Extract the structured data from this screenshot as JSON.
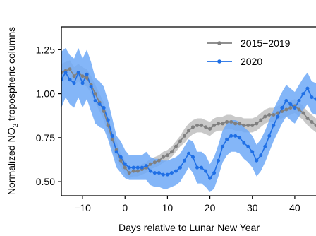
{
  "chart_data": {
    "type": "line",
    "xlabel": "Days relative to Lunar New Year",
    "ylabel_text": "Normalized NO",
    "ylabel_subscript": "2",
    "ylabel_suffix": " tropospheric columns",
    "xlim": [
      -15,
      45
    ],
    "ylim": [
      0.42,
      1.38
    ],
    "xticks": [
      -10,
      0,
      10,
      20,
      30,
      40
    ],
    "xtick_labels": [
      "−10",
      "0",
      "10",
      "20",
      "30",
      "40"
    ],
    "yticks": [
      0.5,
      0.75,
      1.0,
      1.25
    ],
    "ytick_labels": [
      "0.50",
      "0.75",
      "1.00",
      "1.25"
    ],
    "grid": false,
    "legend_position": "top-right",
    "colors": {
      "s2015": "#808080",
      "s2015_band": "#c0c0c0",
      "s2020": "#1f6fe5",
      "s2020_band": "#6fa9f7"
    },
    "series": [
      {
        "name": "2015−2019",
        "x": [
          -15,
          -14,
          -13,
          -12,
          -11,
          -10,
          -9,
          -8,
          -7,
          -6,
          -5,
          -4,
          -3,
          -2,
          -1,
          0,
          1,
          2,
          3,
          4,
          5,
          6,
          7,
          8,
          9,
          10,
          11,
          12,
          13,
          14,
          15,
          16,
          17,
          18,
          19,
          20,
          21,
          22,
          23,
          24,
          25,
          26,
          27,
          28,
          29,
          30,
          31,
          32,
          33,
          34,
          35,
          36,
          37,
          38,
          39,
          40,
          41,
          42,
          43,
          44,
          45
        ],
        "y": [
          1.12,
          1.13,
          1.14,
          1.1,
          1.12,
          1.1,
          1.09,
          1.05,
          1.0,
          0.95,
          0.9,
          0.82,
          0.74,
          0.68,
          0.62,
          0.58,
          0.55,
          0.56,
          0.56,
          0.57,
          0.58,
          0.6,
          0.61,
          0.62,
          0.64,
          0.65,
          0.67,
          0.7,
          0.73,
          0.76,
          0.79,
          0.81,
          0.82,
          0.82,
          0.81,
          0.8,
          0.82,
          0.83,
          0.83,
          0.84,
          0.84,
          0.83,
          0.83,
          0.82,
          0.82,
          0.82,
          0.83,
          0.85,
          0.87,
          0.88,
          0.88,
          0.89,
          0.9,
          0.91,
          0.92,
          0.93,
          0.91,
          0.89,
          0.86,
          0.84,
          0.82
        ],
        "lower": [
          1.07,
          1.08,
          1.09,
          1.05,
          1.07,
          1.05,
          1.04,
          1.0,
          0.95,
          0.9,
          0.85,
          0.77,
          0.69,
          0.63,
          0.58,
          0.54,
          0.52,
          0.53,
          0.53,
          0.54,
          0.55,
          0.57,
          0.58,
          0.59,
          0.61,
          0.62,
          0.64,
          0.67,
          0.7,
          0.72,
          0.75,
          0.77,
          0.78,
          0.78,
          0.77,
          0.76,
          0.78,
          0.79,
          0.79,
          0.8,
          0.8,
          0.79,
          0.79,
          0.78,
          0.78,
          0.78,
          0.79,
          0.81,
          0.83,
          0.84,
          0.84,
          0.85,
          0.86,
          0.87,
          0.88,
          0.89,
          0.87,
          0.85,
          0.82,
          0.8,
          0.78
        ],
        "upper": [
          1.17,
          1.18,
          1.19,
          1.15,
          1.17,
          1.15,
          1.14,
          1.1,
          1.05,
          1.0,
          0.95,
          0.87,
          0.79,
          0.73,
          0.66,
          0.62,
          0.58,
          0.59,
          0.59,
          0.6,
          0.61,
          0.63,
          0.64,
          0.65,
          0.67,
          0.68,
          0.7,
          0.73,
          0.76,
          0.8,
          0.83,
          0.85,
          0.86,
          0.86,
          0.85,
          0.84,
          0.86,
          0.87,
          0.87,
          0.88,
          0.88,
          0.87,
          0.87,
          0.86,
          0.86,
          0.86,
          0.87,
          0.89,
          0.91,
          0.92,
          0.92,
          0.93,
          0.94,
          0.95,
          0.96,
          0.97,
          0.95,
          0.93,
          0.9,
          0.88,
          0.86
        ]
      },
      {
        "name": "2020",
        "x": [
          -15,
          -14,
          -13,
          -12,
          -11,
          -10,
          -9,
          -8,
          -7,
          -6,
          -5,
          -4,
          -3,
          -2,
          -1,
          0,
          1,
          2,
          3,
          4,
          5,
          6,
          7,
          8,
          9,
          10,
          11,
          12,
          13,
          14,
          15,
          16,
          17,
          18,
          19,
          20,
          21,
          22,
          23,
          24,
          25,
          26,
          27,
          28,
          29,
          30,
          31,
          32,
          33,
          34,
          35,
          36,
          37,
          38,
          39,
          40,
          41,
          42,
          43,
          44,
          45
        ],
        "y": [
          1.08,
          1.12,
          1.08,
          1.06,
          1.12,
          1.06,
          1.11,
          1.04,
          0.96,
          0.94,
          0.92,
          0.85,
          0.76,
          0.67,
          0.64,
          0.6,
          0.58,
          0.58,
          0.58,
          0.58,
          0.59,
          0.56,
          0.55,
          0.55,
          0.54,
          0.54,
          0.55,
          0.56,
          0.58,
          0.62,
          0.66,
          0.64,
          0.58,
          0.58,
          0.56,
          0.52,
          0.55,
          0.62,
          0.7,
          0.74,
          0.76,
          0.76,
          0.75,
          0.72,
          0.7,
          0.67,
          0.62,
          0.65,
          0.7,
          0.76,
          0.82,
          0.87,
          0.92,
          0.96,
          0.94,
          0.92,
          0.96,
          1.0,
          1.03,
          0.98,
          0.97
        ],
        "lower": [
          0.92,
          0.98,
          0.94,
          0.92,
          0.98,
          0.92,
          0.97,
          0.9,
          0.83,
          0.81,
          0.8,
          0.74,
          0.66,
          0.58,
          0.55,
          0.52,
          0.51,
          0.51,
          0.51,
          0.51,
          0.51,
          0.48,
          0.47,
          0.47,
          0.46,
          0.46,
          0.47,
          0.48,
          0.5,
          0.54,
          0.58,
          0.55,
          0.49,
          0.49,
          0.47,
          0.44,
          0.46,
          0.53,
          0.61,
          0.65,
          0.67,
          0.67,
          0.66,
          0.63,
          0.61,
          0.58,
          0.53,
          0.56,
          0.61,
          0.67,
          0.73,
          0.78,
          0.83,
          0.87,
          0.85,
          0.83,
          0.87,
          0.91,
          0.94,
          0.89,
          0.88
        ],
        "upper": [
          1.24,
          1.26,
          1.22,
          1.2,
          1.26,
          1.2,
          1.25,
          1.18,
          1.09,
          1.07,
          1.04,
          0.96,
          0.86,
          0.76,
          0.73,
          0.68,
          0.65,
          0.65,
          0.65,
          0.65,
          0.67,
          0.64,
          0.63,
          0.63,
          0.62,
          0.62,
          0.63,
          0.64,
          0.66,
          0.7,
          0.74,
          0.73,
          0.67,
          0.67,
          0.65,
          0.6,
          0.64,
          0.71,
          0.79,
          0.83,
          0.85,
          0.85,
          0.84,
          0.81,
          0.79,
          0.76,
          0.71,
          0.74,
          0.79,
          0.85,
          0.91,
          0.96,
          1.01,
          1.05,
          1.03,
          1.01,
          1.05,
          1.09,
          1.12,
          1.07,
          1.06
        ]
      }
    ]
  }
}
